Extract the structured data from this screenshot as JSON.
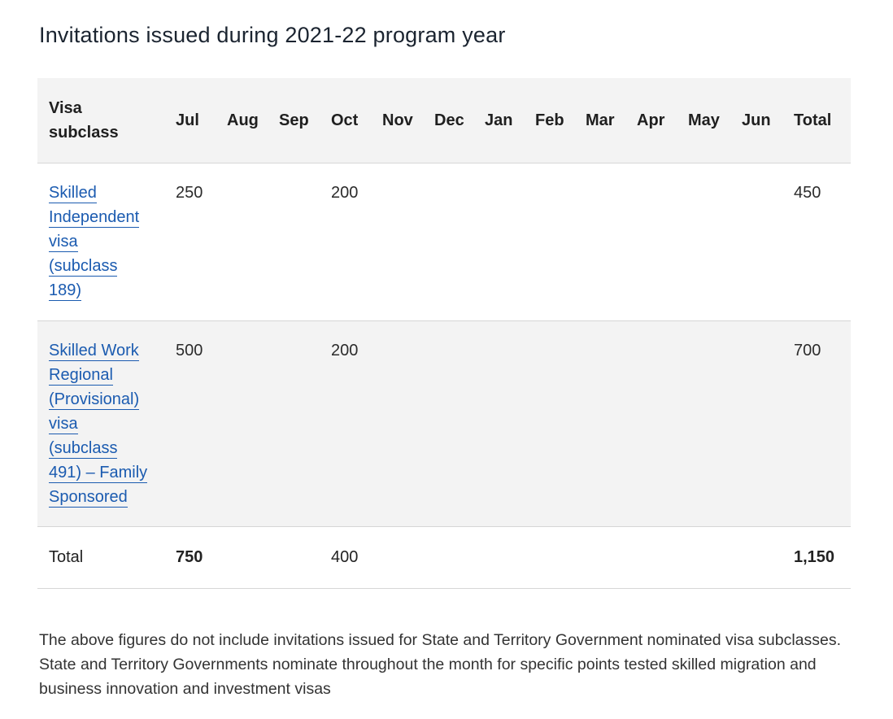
{
  "title": "Invitations issued during 2021-22 program year",
  "table": {
    "header": {
      "visa_line1": "Visa",
      "visa_line2": "subclass",
      "months": [
        "Jul",
        "Aug",
        "Sep",
        "Oct",
        "Nov",
        "Dec",
        "Jan",
        "Feb",
        "Mar",
        "Apr",
        "May",
        "Jun"
      ],
      "total": "Total"
    },
    "rows": [
      {
        "visa_lines": [
          "Skilled",
          "Independent",
          "visa",
          "(subclass",
          "189)"
        ],
        "values": [
          "250",
          "",
          "",
          "200",
          "",
          "",
          "",
          "",
          "",
          "",
          "",
          ""
        ],
        "total": "450"
      },
      {
        "visa_lines": [
          "Skilled Work",
          "Regional",
          "(Provisional)",
          "visa",
          "(subclass",
          "491) – Family",
          "Sponsored"
        ],
        "values": [
          "500",
          "",
          "",
          "200",
          "",
          "",
          "",
          "",
          "",
          "",
          "",
          ""
        ],
        "total": "700"
      }
    ],
    "totals": {
      "label": "Total",
      "values": [
        "750",
        "",
        "",
        "400",
        "",
        "",
        "",
        "",
        "",
        "",
        "",
        ""
      ],
      "total": "1,150"
    }
  },
  "footnote": "The above figures do not include invitations issued for State and Territory Government nominated visa subclasses. State and Territory Governments nominate throughout the month for specific points tested skilled migration and business innovation and investment visas"
}
